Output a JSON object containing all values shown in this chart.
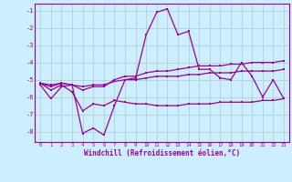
{
  "title": "",
  "xlabel": "Windchill (Refroidissement éolien,°C)",
  "bg_color": "#cceeff",
  "grid_color": "#aacccc",
  "line_color": "#990099",
  "xlim": [
    -0.5,
    23.5
  ],
  "ylim": [
    -8.6,
    -0.6
  ],
  "yticks": [
    -8,
    -7,
    -6,
    -5,
    -4,
    -3,
    -2,
    -1
  ],
  "xticks": [
    0,
    1,
    2,
    3,
    4,
    5,
    6,
    7,
    8,
    9,
    10,
    11,
    12,
    13,
    14,
    15,
    16,
    17,
    18,
    19,
    20,
    21,
    22,
    23
  ],
  "line1": [
    -5.3,
    -6.1,
    -5.4,
    -5.3,
    -8.1,
    -7.8,
    -8.2,
    -6.5,
    -5.0,
    -4.9,
    -2.4,
    -1.1,
    -0.9,
    -2.4,
    -2.2,
    -4.4,
    -4.4,
    -4.9,
    -5.0,
    -4.0,
    -4.8,
    -6.0,
    -5.0,
    -6.1
  ],
  "line2": [
    -5.2,
    -5.4,
    -5.2,
    -5.3,
    -5.6,
    -5.4,
    -5.4,
    -5.0,
    -4.8,
    -4.8,
    -4.6,
    -4.5,
    -4.5,
    -4.4,
    -4.3,
    -4.2,
    -4.2,
    -4.2,
    -4.1,
    -4.1,
    -4.0,
    -4.0,
    -4.0,
    -3.9
  ],
  "line3": [
    -5.2,
    -5.3,
    -5.2,
    -5.3,
    -5.4,
    -5.3,
    -5.3,
    -5.1,
    -5.0,
    -5.0,
    -4.9,
    -4.8,
    -4.8,
    -4.8,
    -4.7,
    -4.7,
    -4.6,
    -4.6,
    -4.6,
    -4.5,
    -4.5,
    -4.5,
    -4.5,
    -4.4
  ],
  "line4": [
    -5.2,
    -5.6,
    -5.3,
    -5.7,
    -6.8,
    -6.4,
    -6.5,
    -6.2,
    -6.3,
    -6.4,
    -6.4,
    -6.5,
    -6.5,
    -6.5,
    -6.4,
    -6.4,
    -6.4,
    -6.3,
    -6.3,
    -6.3,
    -6.3,
    -6.2,
    -6.2,
    -6.1
  ]
}
